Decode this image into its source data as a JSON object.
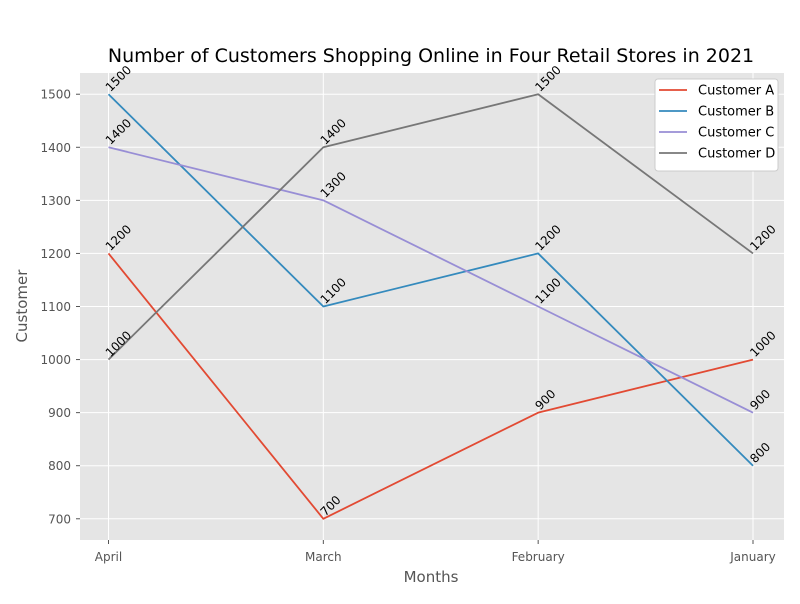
{
  "chart_data": {
    "type": "line",
    "title": "Number of Customers Shopping Online in Four Retail Stores in 2021",
    "xlabel": "Months",
    "ylabel": "Customer",
    "categories": [
      "April",
      "March",
      "February",
      "January"
    ],
    "ylim": [
      660,
      1540
    ],
    "yticks": [
      700,
      800,
      900,
      1000,
      1100,
      1200,
      1300,
      1400,
      1500
    ],
    "grid": true,
    "legend_position": "top-right",
    "series": [
      {
        "name": "Customer A",
        "color": "#E24A33",
        "values": [
          1200,
          700,
          900,
          1000
        ]
      },
      {
        "name": "Customer B",
        "color": "#348ABD",
        "values": [
          1500,
          1100,
          1200,
          800
        ]
      },
      {
        "name": "Customer C",
        "color": "#988ED5",
        "values": [
          1400,
          1300,
          1100,
          900
        ]
      },
      {
        "name": "Customer D",
        "color": "#777777",
        "values": [
          1000,
          1400,
          1500,
          1200
        ]
      }
    ]
  }
}
